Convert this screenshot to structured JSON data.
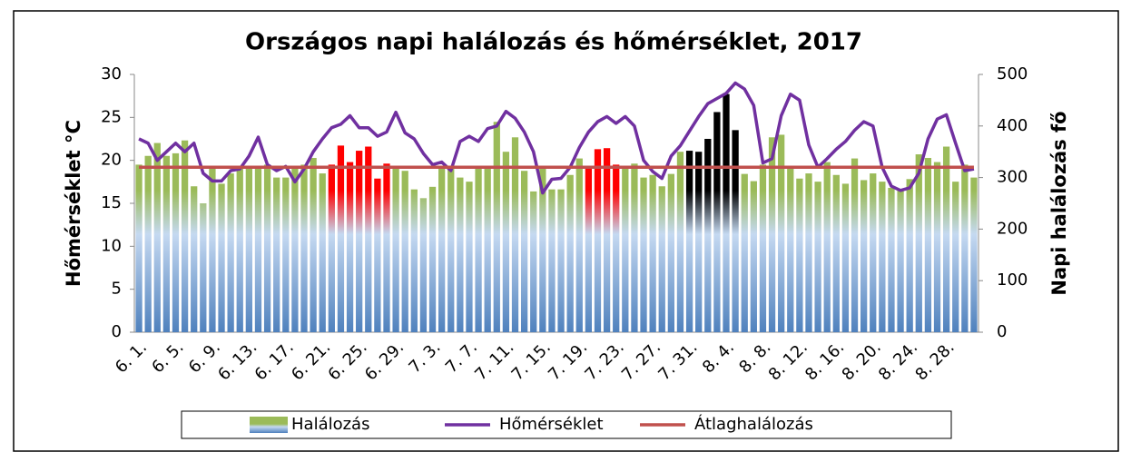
{
  "chart_data": {
    "type": "bar-line",
    "title": "Országos napi halálozás és hőmérséklet, 2017",
    "y_label": "Hőmérséklet °C",
    "y2_label": "Napi halálozás fő",
    "categories": [
      "6. 1.",
      null,
      null,
      null,
      "6. 5.",
      null,
      null,
      null,
      "6. 9.",
      null,
      null,
      null,
      "6. 13.",
      null,
      null,
      null,
      "6. 17.",
      null,
      null,
      null,
      "6. 21.",
      null,
      null,
      null,
      "6. 25.",
      null,
      null,
      null,
      "6. 29.",
      null,
      null,
      null,
      "7. 3.",
      null,
      null,
      null,
      "7. 7.",
      null,
      null,
      null,
      "7. 11.",
      null,
      null,
      null,
      "7. 15.",
      null,
      null,
      null,
      "7. 19.",
      null,
      null,
      null,
      "7. 23.",
      null,
      null,
      null,
      "7. 27.",
      null,
      null,
      null,
      "7. 31.",
      null,
      null,
      null,
      "8. 4.",
      null,
      null,
      null,
      "8. 8.",
      null,
      null,
      null,
      "8. 12.",
      null,
      null,
      null,
      "8. 16.",
      null,
      null,
      null,
      "8. 20.",
      null,
      null,
      null,
      "8. 24.",
      null,
      null,
      null,
      "8. 28.",
      null,
      null,
      null
    ],
    "ylim": [
      0,
      30
    ],
    "yticks": [
      0,
      5,
      10,
      15,
      20,
      25,
      30
    ],
    "y2lim": [
      0,
      500
    ],
    "y2ticks": [
      0,
      100,
      200,
      300,
      400,
      500
    ],
    "series": [
      {
        "name": "Halálozás",
        "kind": "bar",
        "axis": "y2",
        "color": "#9bbb59",
        "colors": [
          "#9bbb59",
          "#9bbb59",
          "#9bbb59",
          "#9bbb59",
          "#9bbb59",
          "#9bbb59",
          "#9bbb59",
          "#9bbb59",
          "#9bbb59",
          "#9bbb59",
          "#9bbb59",
          "#9bbb59",
          "#9bbb59",
          "#9bbb59",
          "#9bbb59",
          "#9bbb59",
          "#9bbb59",
          "#9bbb59",
          "#9bbb59",
          "#9bbb59",
          "#9bbb59",
          "#ff0000",
          "#ff0000",
          "#ff0000",
          "#ff0000",
          "#ff0000",
          "#ff0000",
          "#ff0000",
          "#9bbb59",
          "#9bbb59",
          "#9bbb59",
          "#9bbb59",
          "#9bbb59",
          "#9bbb59",
          "#9bbb59",
          "#9bbb59",
          "#9bbb59",
          "#9bbb59",
          "#9bbb59",
          "#9bbb59",
          "#9bbb59",
          "#9bbb59",
          "#9bbb59",
          "#9bbb59",
          "#9bbb59",
          "#9bbb59",
          "#9bbb59",
          "#9bbb59",
          "#9bbb59",
          "#ff0000",
          "#ff0000",
          "#ff0000",
          "#ff0000",
          "#9bbb59",
          "#9bbb59",
          "#9bbb59",
          "#9bbb59",
          "#9bbb59",
          "#9bbb59",
          "#9bbb59",
          "#000000",
          "#000000",
          "#000000",
          "#000000",
          "#000000",
          "#000000",
          "#9bbb59",
          "#9bbb59",
          "#9bbb59",
          "#9bbb59",
          "#9bbb59",
          "#9bbb59",
          "#9bbb59",
          "#9bbb59",
          "#9bbb59",
          "#9bbb59",
          "#9bbb59",
          "#9bbb59",
          "#9bbb59",
          "#9bbb59",
          "#9bbb59",
          "#9bbb59",
          "#9bbb59",
          "#9bbb59",
          "#9bbb59",
          "#9bbb59",
          "#9bbb59",
          "#9bbb59",
          "#9bbb59",
          "#9bbb59",
          "#9bbb59",
          "#9bbb59"
        ],
        "values": [
          325,
          342,
          367,
          342,
          347,
          372,
          283,
          250,
          322,
          288,
          308,
          317,
          317,
          317,
          325,
          300,
          300,
          317,
          325,
          338,
          308,
          325,
          362,
          330,
          352,
          360,
          298,
          327,
          322,
          313,
          277,
          260,
          282,
          322,
          322,
          300,
          292,
          320,
          322,
          408,
          350,
          378,
          313,
          273,
          320,
          277,
          277,
          305,
          337,
          322,
          355,
          357,
          325,
          320,
          327,
          300,
          305,
          283,
          307,
          350,
          352,
          350,
          375,
          427,
          462,
          392,
          307,
          293,
          325,
          378,
          383,
          317,
          298,
          308,
          292,
          330,
          305,
          288,
          337,
          295,
          308,
          292,
          280,
          275,
          297,
          345,
          338,
          330,
          360,
          292,
          325,
          300
        ]
      },
      {
        "name": "Hőmérséklet",
        "kind": "line",
        "axis": "y",
        "color": "#7030a0",
        "values": [
          22.5,
          22,
          20,
          21,
          22,
          21,
          22,
          18.5,
          17.6,
          17.6,
          18.8,
          19,
          20.5,
          22.7,
          19.5,
          18.8,
          19.3,
          17.5,
          19,
          21,
          22.5,
          23.8,
          24.2,
          25.2,
          23.8,
          23.8,
          22.8,
          23.3,
          25.6,
          23.2,
          22.5,
          20.8,
          19.5,
          19.8,
          18.8,
          22.2,
          22.8,
          22.2,
          23.7,
          24,
          25.7,
          24.9,
          23.3,
          21,
          16.2,
          17.8,
          17.9,
          19.2,
          21.5,
          23.3,
          24.5,
          25.1,
          24.3,
          25.1,
          24,
          20,
          18.7,
          17.9,
          20.5,
          21.7,
          23.4,
          25.1,
          26.6,
          27.2,
          27.8,
          29,
          28.3,
          26.4,
          19.7,
          20.2,
          25.2,
          27.7,
          27,
          21.8,
          19.2,
          20.2,
          21.3,
          22.2,
          23.5,
          24.5,
          24,
          19.2,
          17,
          16.5,
          16.8,
          18.5,
          22.5,
          24.8,
          25.3,
          22,
          18.8,
          19
        ]
      },
      {
        "name": "Átlaghalálozás",
        "kind": "hline",
        "axis": "y2",
        "color": "#c0504d",
        "value": 320
      }
    ]
  }
}
